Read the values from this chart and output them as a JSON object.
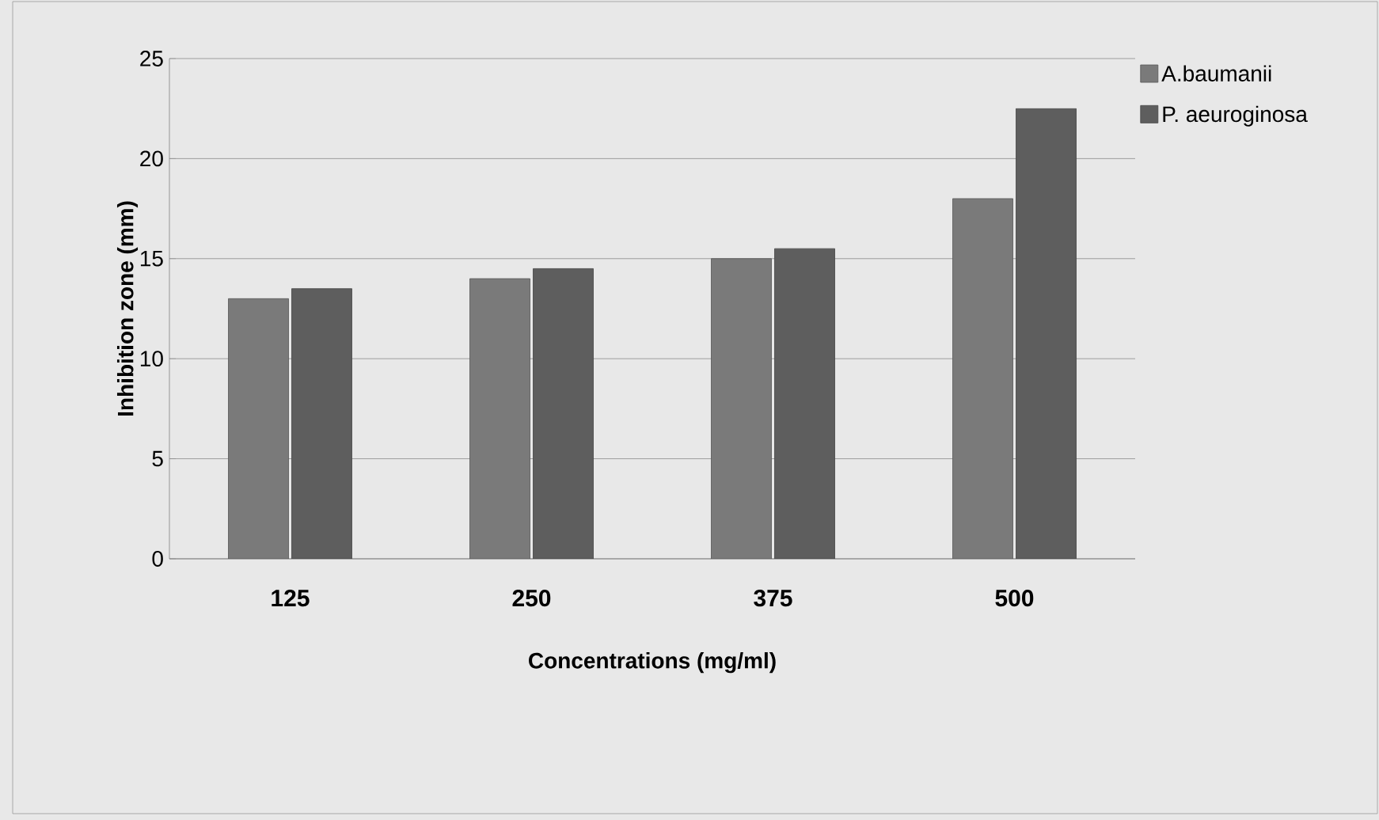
{
  "chart_data": {
    "type": "bar",
    "xlabel": "Concentrations (mg/ml)",
    "ylabel": "Inhibition zone (mm)",
    "categories": [
      "125",
      "250",
      "375",
      "500"
    ],
    "series": [
      {
        "name": "A.baumanii",
        "color": "#7a7a7a",
        "values": [
          13,
          14,
          15,
          18
        ]
      },
      {
        "name": "P. aeuroginosa",
        "color": "#5e5e5e",
        "values": [
          13.5,
          14.5,
          15.5,
          22.5
        ]
      }
    ],
    "ylim": [
      0,
      25
    ],
    "yticks": [
      0,
      5,
      10,
      15,
      20,
      25
    ],
    "grid": "y",
    "legend": "top right"
  }
}
